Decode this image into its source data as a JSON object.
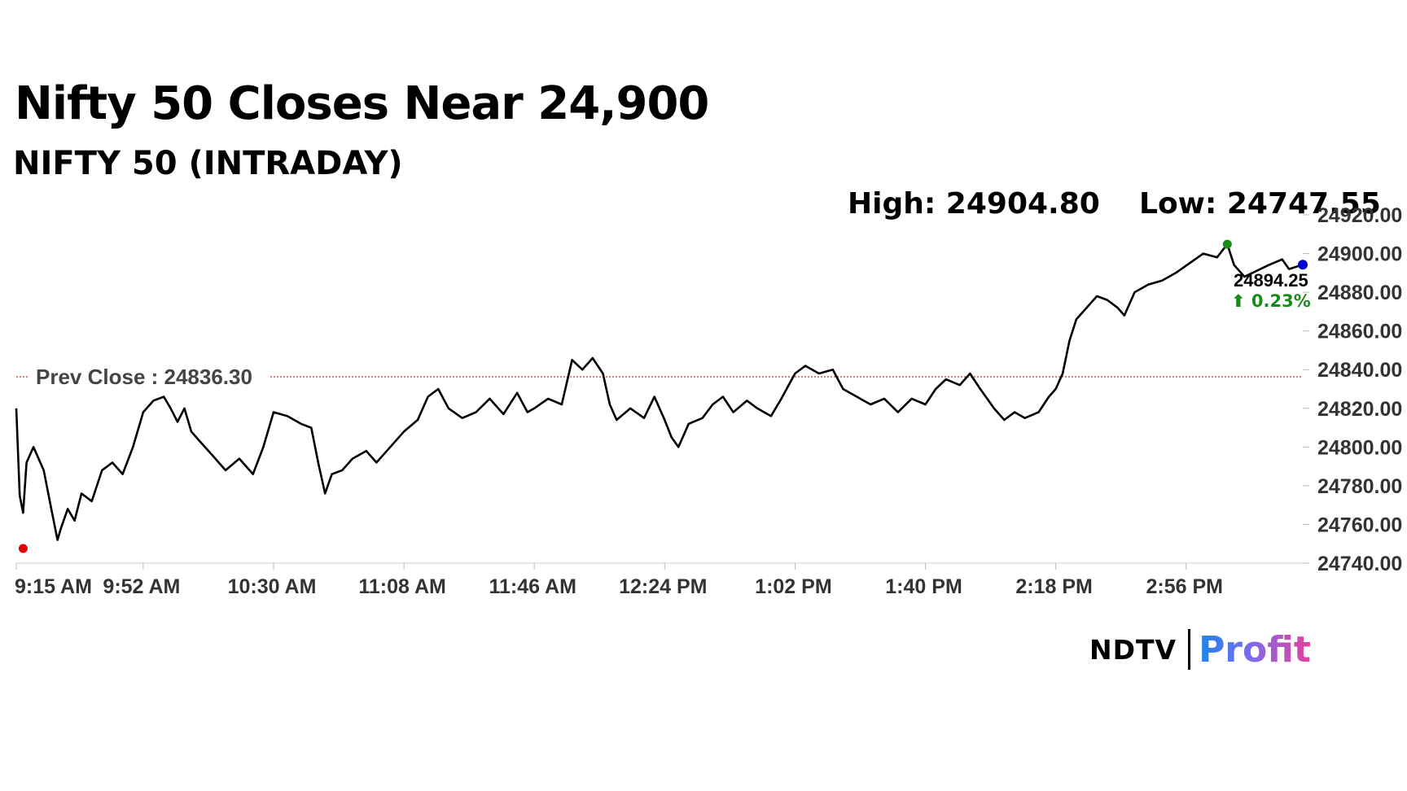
{
  "header": {
    "title": "Nifty 50 Closes Near 24,900",
    "subtitle": "NIFTY 50 (INTRADAY)",
    "high_text": "High: 24904.80",
    "low_text": "Low: 24747.55"
  },
  "logo": {
    "ndtv": "NDTV",
    "profit": "Profit"
  },
  "colors": {
    "line": "#000000",
    "prev_close_line": "#c0392b",
    "high_dot": "#1a8a1a",
    "low_dot": "#e00000",
    "last_dot": "#0000cc",
    "change_up": "#1a8a1a"
  },
  "chart_data": {
    "type": "line",
    "title": "NIFTY 50 (INTRADAY)",
    "xlabel": "",
    "ylabel": "",
    "ylim": [
      24740,
      24920
    ],
    "y_ticks": [
      "24740.00",
      "24760.00",
      "24780.00",
      "24800.00",
      "24820.00",
      "24840.00",
      "24860.00",
      "24880.00",
      "24900.00",
      "24920.00"
    ],
    "x_ticks": [
      "9:15 AM",
      "9:52 AM",
      "10:30 AM",
      "11:08 AM",
      "11:46 AM",
      "12:24 PM",
      "1:02 PM",
      "1:40 PM",
      "2:18 PM",
      "2:56 PM"
    ],
    "grid": false,
    "prev_close": {
      "label": "Prev Close : 24836.30",
      "value": 24836.3
    },
    "high": {
      "time": "3:08 PM",
      "value": 24904.8
    },
    "low": {
      "time": "9:17 AM",
      "value": 24747.55
    },
    "last": {
      "time": "3:30 PM",
      "value": 24894.25,
      "label": "24894.25",
      "change_label": "⬆ 0.23%"
    },
    "series": [
      {
        "points": [
          [
            "9:15 AM",
            24820
          ],
          [
            "9:16 AM",
            24775
          ],
          [
            "9:17 AM",
            24766
          ],
          [
            "9:18 AM",
            24792
          ],
          [
            "9:20 AM",
            24800
          ],
          [
            "9:23 AM",
            24788
          ],
          [
            "9:25 AM",
            24770
          ],
          [
            "9:27 AM",
            24752
          ],
          [
            "9:28 AM",
            24758
          ],
          [
            "9:30 AM",
            24768
          ],
          [
            "9:32 AM",
            24762
          ],
          [
            "9:34 AM",
            24776
          ],
          [
            "9:37 AM",
            24772
          ],
          [
            "9:40 AM",
            24788
          ],
          [
            "9:43 AM",
            24792
          ],
          [
            "9:46 AM",
            24786
          ],
          [
            "9:49 AM",
            24800
          ],
          [
            "9:52 AM",
            24818
          ],
          [
            "9:55 AM",
            24824
          ],
          [
            "9:58 AM",
            24826
          ],
          [
            "10:00 AM",
            24820
          ],
          [
            "10:02 AM",
            24813
          ],
          [
            "10:04 AM",
            24820
          ],
          [
            "10:06 AM",
            24808
          ],
          [
            "10:09 AM",
            24802
          ],
          [
            "10:12 AM",
            24796
          ],
          [
            "10:16 AM",
            24788
          ],
          [
            "10:20 AM",
            24794
          ],
          [
            "10:24 AM",
            24786
          ],
          [
            "10:27 AM",
            24800
          ],
          [
            "10:30 AM",
            24818
          ],
          [
            "10:34 AM",
            24816
          ],
          [
            "10:38 AM",
            24812
          ],
          [
            "10:41 AM",
            24810
          ],
          [
            "10:43 AM",
            24792
          ],
          [
            "10:45 AM",
            24776
          ],
          [
            "10:47 AM",
            24786
          ],
          [
            "10:50 AM",
            24788
          ],
          [
            "10:53 AM",
            24794
          ],
          [
            "10:57 AM",
            24798
          ],
          [
            "11:00 AM",
            24792
          ],
          [
            "11:04 AM",
            24800
          ],
          [
            "11:08 AM",
            24808
          ],
          [
            "11:12 AM",
            24814
          ],
          [
            "11:15 AM",
            24826
          ],
          [
            "11:18 AM",
            24830
          ],
          [
            "11:21 AM",
            24820
          ],
          [
            "11:25 AM",
            24815
          ],
          [
            "11:29 AM",
            24818
          ],
          [
            "11:33 AM",
            24825
          ],
          [
            "11:37 AM",
            24817
          ],
          [
            "11:41 AM",
            24828
          ],
          [
            "11:44 AM",
            24818
          ],
          [
            "11:46 AM",
            24820
          ],
          [
            "11:50 AM",
            24825
          ],
          [
            "11:54 AM",
            24822
          ],
          [
            "11:57 AM",
            24845
          ],
          [
            "12:00 PM",
            24840
          ],
          [
            "12:03 PM",
            24846
          ],
          [
            "12:06 PM",
            24838
          ],
          [
            "12:08 PM",
            24822
          ],
          [
            "12:10 PM",
            24814
          ],
          [
            "12:14 PM",
            24820
          ],
          [
            "12:18 PM",
            24815
          ],
          [
            "12:21 PM",
            24826
          ],
          [
            "12:24 PM",
            24814
          ],
          [
            "12:26 PM",
            24805
          ],
          [
            "12:28 PM",
            24800
          ],
          [
            "12:31 PM",
            24812
          ],
          [
            "12:35 PM",
            24815
          ],
          [
            "12:38 PM",
            24822
          ],
          [
            "12:41 PM",
            24826
          ],
          [
            "12:44 PM",
            24818
          ],
          [
            "12:48 PM",
            24824
          ],
          [
            "12:51 PM",
            24820
          ],
          [
            "12:55 PM",
            24816
          ],
          [
            "12:58 PM",
            24825
          ],
          [
            "1:02 PM",
            24838
          ],
          [
            "1:05 PM",
            24842
          ],
          [
            "1:09 PM",
            24838
          ],
          [
            "1:13 PM",
            24840
          ],
          [
            "1:16 PM",
            24830
          ],
          [
            "1:20 PM",
            24826
          ],
          [
            "1:24 PM",
            24822
          ],
          [
            "1:28 PM",
            24825
          ],
          [
            "1:32 PM",
            24818
          ],
          [
            "1:36 PM",
            24825
          ],
          [
            "1:40 PM",
            24822
          ],
          [
            "1:43 PM",
            24830
          ],
          [
            "1:46 PM",
            24835
          ],
          [
            "1:50 PM",
            24832
          ],
          [
            "1:53 PM",
            24838
          ],
          [
            "1:56 PM",
            24830
          ],
          [
            "2:00 PM",
            24820
          ],
          [
            "2:03 PM",
            24814
          ],
          [
            "2:06 PM",
            24818
          ],
          [
            "2:09 PM",
            24815
          ],
          [
            "2:13 PM",
            24818
          ],
          [
            "2:16 PM",
            24826
          ],
          [
            "2:18 PM",
            24830
          ],
          [
            "2:20 PM",
            24838
          ],
          [
            "2:22 PM",
            24855
          ],
          [
            "2:24 PM",
            24866
          ],
          [
            "2:27 PM",
            24872
          ],
          [
            "2:30 PM",
            24878
          ],
          [
            "2:33 PM",
            24876
          ],
          [
            "2:36 PM",
            24872
          ],
          [
            "2:38 PM",
            24868
          ],
          [
            "2:41 PM",
            24880
          ],
          [
            "2:45 PM",
            24884
          ],
          [
            "2:49 PM",
            24886
          ],
          [
            "2:53 PM",
            24890
          ],
          [
            "2:57 PM",
            24895
          ],
          [
            "3:01 PM",
            24900
          ],
          [
            "3:05 PM",
            24898
          ],
          [
            "3:08 PM",
            24904.8
          ],
          [
            "3:10 PM",
            24894
          ],
          [
            "3:12 PM",
            24890
          ],
          [
            "3:13 PM",
            24888
          ],
          [
            "3:20 PM",
            24894
          ],
          [
            "3:24 PM",
            24897
          ],
          [
            "3:26 PM",
            24892
          ],
          [
            "3:30 PM",
            24894.25
          ]
        ]
      }
    ]
  }
}
